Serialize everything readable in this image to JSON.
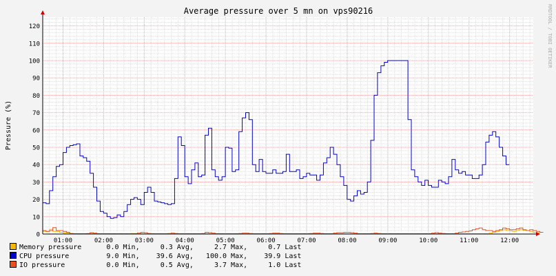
{
  "title": "Average pressure over 5 mn on vps90216",
  "watermark": "RRDTOOL / TOBI OETIKER",
  "chart_data": {
    "type": "line",
    "title": "Average pressure over 5 mn on vps90216",
    "ylabel": "Pressure (%)",
    "xlabel": "",
    "ylim": [
      0,
      125
    ],
    "xlim": [
      0.5,
      12.583
    ],
    "y_ticks": [
      0,
      10,
      20,
      30,
      40,
      50,
      60,
      70,
      80,
      90,
      100,
      110,
      120
    ],
    "x_ticks": [
      {
        "t": 1,
        "label": "01:00"
      },
      {
        "t": 2,
        "label": "02:00"
      },
      {
        "t": 3,
        "label": "03:00"
      },
      {
        "t": 4,
        "label": "04:00"
      },
      {
        "t": 5,
        "label": "05:00"
      },
      {
        "t": 6,
        "label": "06:00"
      },
      {
        "t": 7,
        "label": "07:00"
      },
      {
        "t": 8,
        "label": "08:00"
      },
      {
        "t": 9,
        "label": "09:00"
      },
      {
        "t": 10,
        "label": "10:00"
      },
      {
        "t": 11,
        "label": "11:00"
      },
      {
        "t": 12,
        "label": "12:00"
      }
    ],
    "x_unit": "hours",
    "grid": true,
    "legend_position": "bottom",
    "series": [
      {
        "name": "Memory pressure",
        "color": "#F5B800",
        "stats": {
          "min": "0.0",
          "avg": "0.3",
          "max": "2.7",
          "last": "0.7"
        },
        "step": 0.0833,
        "values": [
          1.5,
          1.5,
          2.7,
          1.5,
          1.5,
          1,
          0.5,
          0.5,
          0.3,
          0.2,
          0.1,
          0.1,
          0.1,
          0.2,
          0.3,
          0.3,
          0.2,
          0.2,
          0.2,
          0.2,
          0.2,
          0.2,
          0.2,
          0.2,
          0.2,
          0.2,
          0.3,
          0.3,
          0.2,
          0.2,
          0.2,
          0.2,
          0.2,
          0.2,
          0.2,
          0.2,
          0.2,
          0.2,
          0.2,
          0.2,
          0.2,
          0.2,
          0.2,
          0.2,
          0.2,
          0.2,
          0.2,
          0.2,
          0.2,
          0.2,
          0.2,
          0.2,
          0.2,
          0.2,
          0.2,
          0.2,
          0.2,
          0.2,
          0.2,
          0.2,
          0.2,
          0.2,
          0.2,
          0.2,
          0.2,
          0.2,
          0.2,
          0.2,
          0.2,
          0.2,
          0.2,
          0.2,
          0.2,
          0.2,
          0.2,
          0.2,
          0.2,
          0.2,
          0.2,
          0.2,
          0.2,
          0.2,
          0.2,
          0.2,
          0.2,
          0.2,
          0.2,
          0.2,
          0.2,
          0.2,
          0.2,
          0.2,
          0.2,
          0.2,
          0.2,
          0.2,
          0.2,
          0.2,
          0.2,
          0.2,
          0.2,
          0.2,
          0.2,
          0.2,
          0.2,
          0.2,
          0.2,
          0.2,
          0.2,
          0.2,
          0.2,
          0.2,
          0.2,
          0.2,
          0.2,
          0.2,
          0.2,
          0.2,
          0.2,
          0.2,
          0.2,
          0.2,
          0.2,
          0.2,
          0.2,
          0.2,
          0.2,
          0.2,
          0.2,
          0.2,
          0.2,
          0.2,
          0.5,
          1,
          1.5,
          2,
          2.5,
          2,
          1.8,
          1.5,
          2,
          2.5,
          2.2,
          2,
          1.5,
          1,
          0.7
        ]
      },
      {
        "name": "CPU pressure",
        "color": "#0000CC",
        "stats": {
          "min": "9.0",
          "avg": "39.6",
          "max": "100.0",
          "last": "39.9"
        },
        "step": 0.0833,
        "values": [
          18,
          17.5,
          25,
          33,
          39,
          40,
          47,
          50,
          51,
          51.5,
          52,
          45,
          44,
          42,
          35,
          27,
          19,
          13,
          12,
          10,
          9,
          9.5,
          11,
          10,
          13,
          17,
          20,
          21,
          20,
          17,
          24,
          27,
          24,
          19,
          18.5,
          18,
          17.5,
          17,
          17.5,
          32,
          56,
          51,
          33,
          29,
          37,
          41,
          33,
          34,
          57,
          61,
          37,
          33,
          31,
          33,
          50,
          49.5,
          36,
          37,
          59,
          67,
          70,
          66,
          40,
          36,
          43,
          36,
          35,
          35,
          37,
          35,
          35,
          36,
          46,
          36,
          36,
          37,
          32,
          33,
          35,
          34,
          34,
          31,
          34,
          41,
          44,
          50,
          46,
          40,
          33,
          28,
          20,
          19,
          22,
          25,
          23,
          24,
          30,
          54,
          80,
          93,
          97,
          99,
          100,
          100,
          100,
          100,
          100,
          100,
          66,
          37,
          33,
          30,
          28,
          31,
          28,
          27,
          27,
          31,
          30,
          29,
          33,
          43,
          37,
          35,
          36,
          34,
          34,
          32,
          32,
          34,
          40,
          53,
          57,
          59,
          56,
          50,
          45,
          40
        ]
      },
      {
        "name": "IO pressure",
        "color": "#EA4F1F",
        "stats": {
          "min": "0.0",
          "avg": "0.5",
          "max": "3.7",
          "last": "1.0"
        },
        "step": 0.0833,
        "values": [
          2,
          1.5,
          2,
          3.7,
          2,
          2,
          1.5,
          1,
          0.3,
          0.2,
          0.2,
          0.2,
          0.2,
          0.3,
          0.8,
          0.5,
          0.2,
          0.2,
          0.2,
          0.2,
          0.2,
          0.2,
          0.2,
          0.2,
          0.2,
          0.2,
          0.2,
          0.2,
          0.5,
          1,
          0.8,
          0.3,
          0.2,
          0.2,
          0.2,
          0.2,
          0.2,
          0.3,
          0.5,
          0.3,
          0.2,
          0.2,
          0.2,
          0.2,
          0.2,
          0.2,
          0.2,
          0.3,
          1,
          0.8,
          0.5,
          0.2,
          0.2,
          0.2,
          0.2,
          0.2,
          0.2,
          0.2,
          0.3,
          0.5,
          0.5,
          0.3,
          0.2,
          0.2,
          0.2,
          0.2,
          0.2,
          0.3,
          0.5,
          0.5,
          0.3,
          0.2,
          0.2,
          0.2,
          0.2,
          0.2,
          0.2,
          0.2,
          0.2,
          0.3,
          0.5,
          0.5,
          0.3,
          0.2,
          0.2,
          0.2,
          0.5,
          0.8,
          0.8,
          1,
          1,
          0.8,
          0.5,
          0.2,
          0.2,
          0.2,
          0.2,
          0.3,
          0.5,
          0.3,
          0.2,
          0.2,
          0.2,
          0.2,
          0.2,
          0.2,
          0.2,
          0.2,
          0.2,
          0.2,
          0.2,
          0.2,
          0.2,
          0.2,
          0.2,
          0.5,
          0.8,
          0.5,
          0.3,
          0.2,
          0.2,
          0.2,
          0.5,
          1,
          1.2,
          1.5,
          1.8,
          2.5,
          3,
          3.5,
          2.5,
          2,
          2,
          1.5,
          2,
          2.5,
          3.5,
          3,
          2.5,
          2.5,
          3,
          3.5,
          2.5,
          2,
          2.5,
          2,
          1.5,
          1
        ]
      }
    ]
  }
}
